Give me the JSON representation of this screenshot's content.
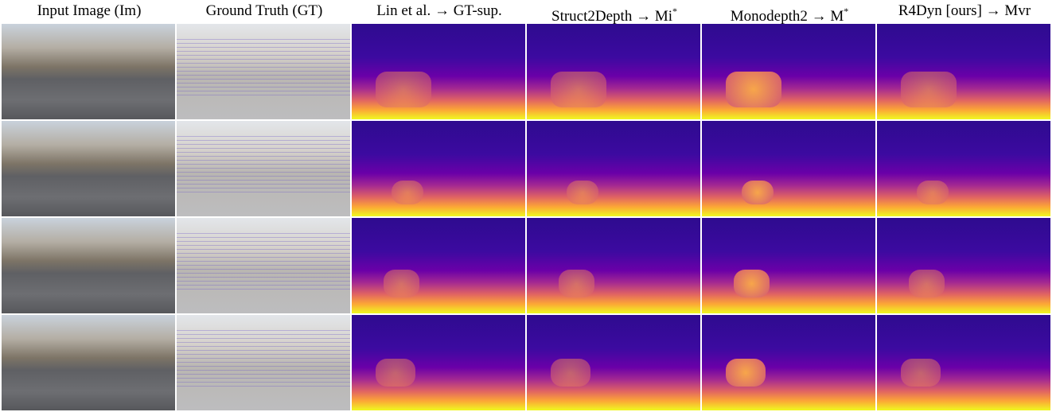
{
  "figure": {
    "columns": [
      {
        "text": "Input Image (Im)"
      },
      {
        "text": "Ground Truth (GT)"
      },
      {
        "text": "Lin et al. → GT-sup."
      },
      {
        "text": "Struct2Depth → Mi",
        "sup": "*"
      },
      {
        "text": "Monodepth2 → M",
        "sup": "*"
      },
      {
        "text": "R4Dyn [ours] → Mvr"
      }
    ]
  }
}
